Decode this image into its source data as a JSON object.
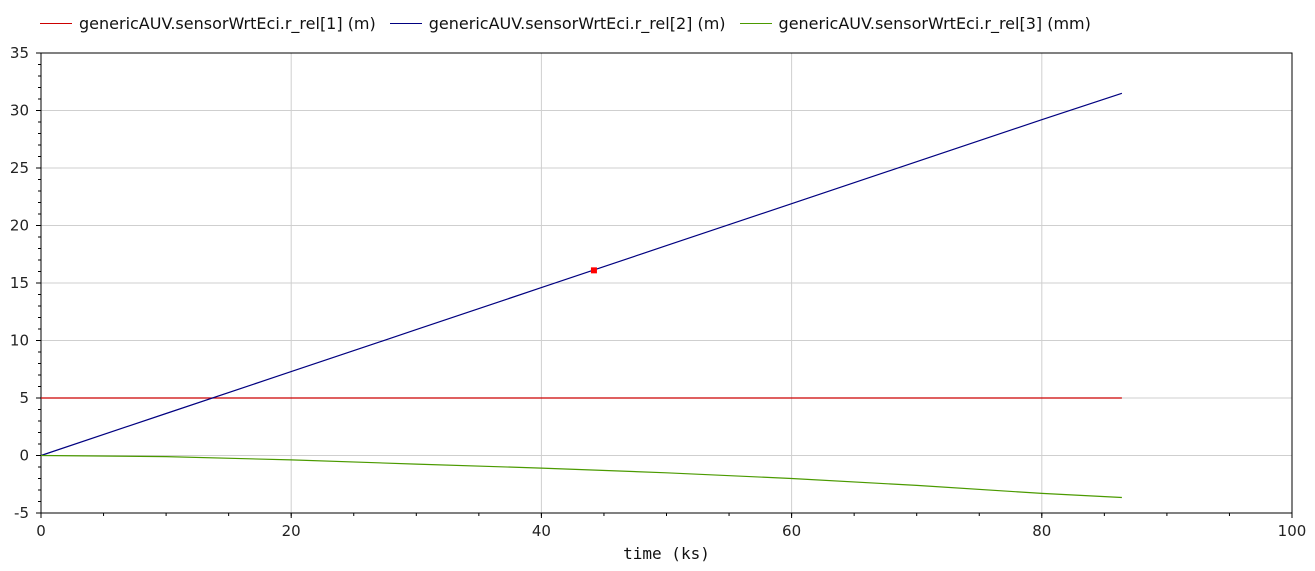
{
  "chart_data": {
    "type": "line",
    "title": "",
    "xlabel": "time (ks)",
    "ylabel": "",
    "xlim": [
      0,
      100
    ],
    "ylim": [
      -5,
      35
    ],
    "x_ticks": [
      0,
      20,
      40,
      60,
      80,
      100
    ],
    "y_ticks": [
      -5,
      0,
      5,
      10,
      15,
      20,
      25,
      30,
      35
    ],
    "grid": true,
    "legend_position": "top",
    "series": [
      {
        "name": "genericAUV.sensorWrtEci.r_rel[1] (m)",
        "color": "#cc0000",
        "x": [
          0,
          86.4
        ],
        "y": [
          5,
          5
        ]
      },
      {
        "name": "genericAUV.sensorWrtEci.r_rel[2] (m)",
        "color": "#000080",
        "x": [
          0,
          10,
          20,
          30,
          40,
          50,
          60,
          70,
          80,
          86.4
        ],
        "y": [
          0,
          3.65,
          7.3,
          10.95,
          14.6,
          18.25,
          21.9,
          25.55,
          29.2,
          31.5
        ]
      },
      {
        "name": "genericAUV.sensorWrtEci.r_rel[3] (mm)",
        "color": "#4b9a00",
        "x": [
          0,
          10,
          20,
          30,
          40,
          50,
          60,
          70,
          80,
          86.4
        ],
        "y": [
          0,
          -0.1,
          -0.38,
          -0.75,
          -1.1,
          -1.5,
          -2.0,
          -2.6,
          -3.3,
          -3.65
        ]
      }
    ],
    "marker": {
      "x": 44.2,
      "y": 16.1,
      "color": "#ff0000"
    }
  }
}
